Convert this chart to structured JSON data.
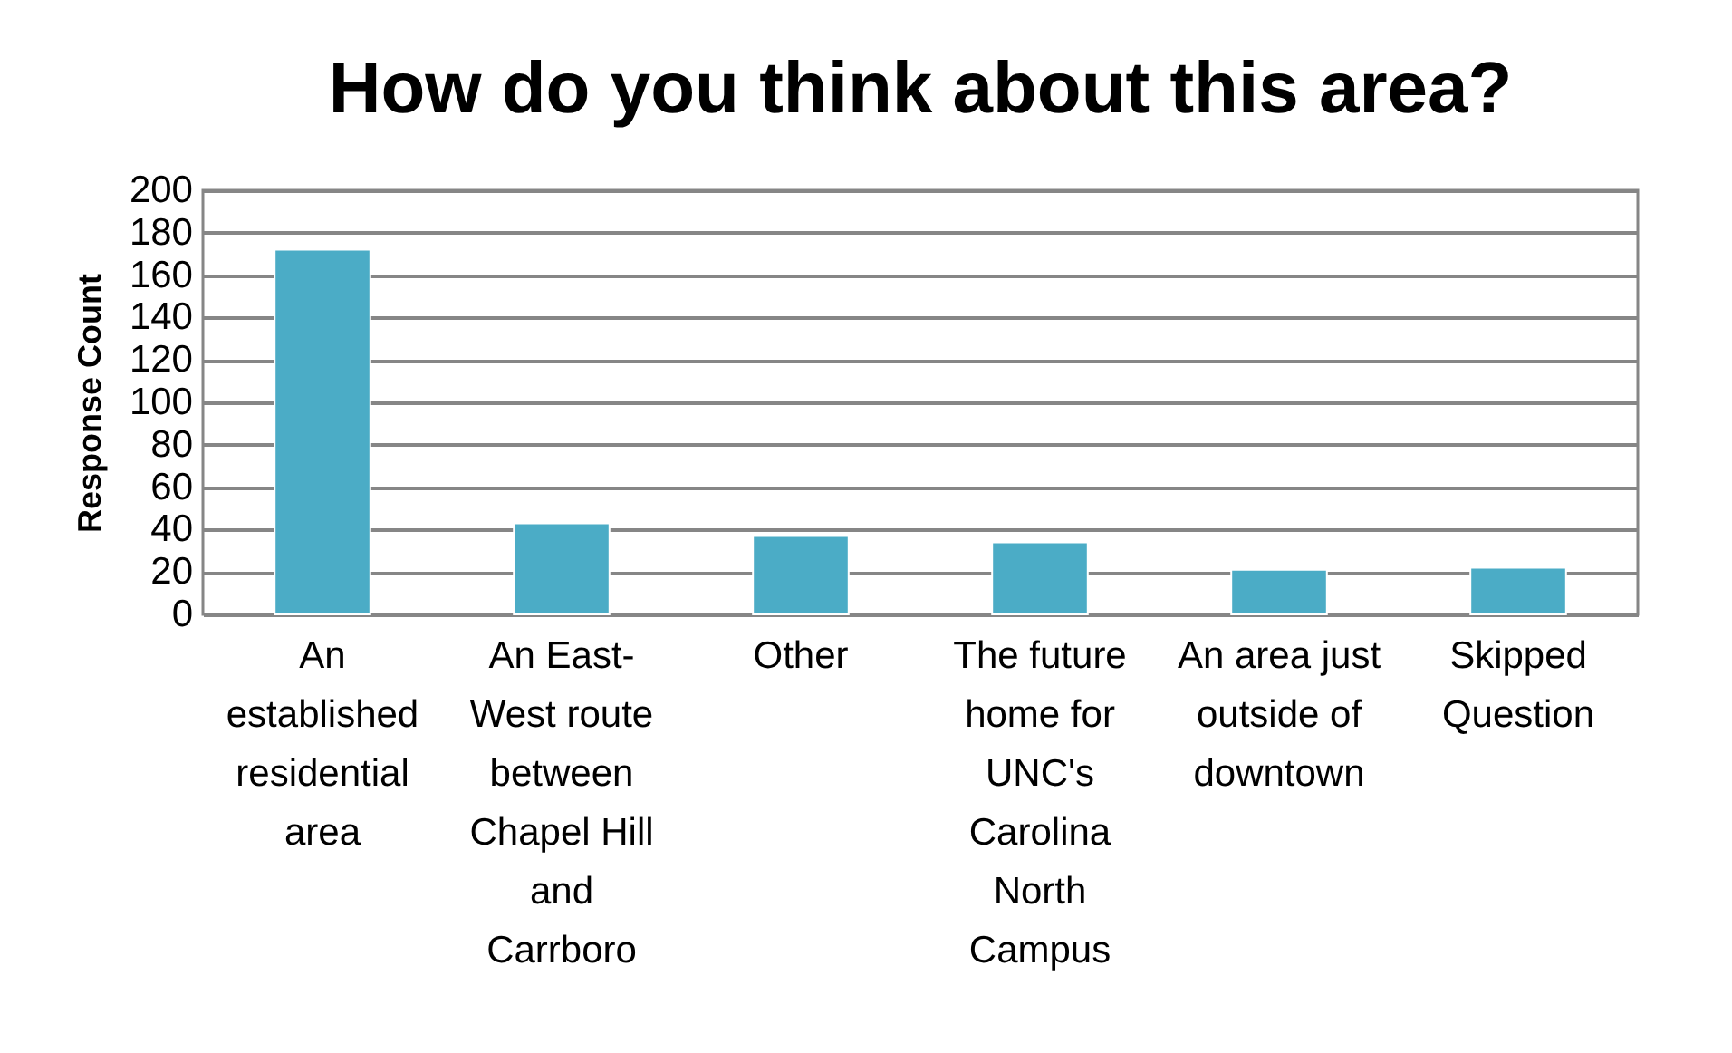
{
  "chart_data": {
    "type": "bar",
    "title": "How do you think about this area?",
    "ylabel": "Response Count",
    "categories": [
      "An\nestablished\nresidential\narea",
      "An East-\nWest route\nbetween\nChapel Hill\nand\nCarrboro",
      "Other",
      "The future\nhome for\nUNC's\nCarolina\nNorth\nCampus",
      "An area just\noutside of\ndowntown",
      "Skipped\nQuestion"
    ],
    "values": [
      172,
      43,
      37,
      34,
      21,
      22
    ],
    "color": "#4bacc6",
    "ylim": [
      0,
      200
    ],
    "yticks": [
      0,
      20,
      40,
      60,
      80,
      100,
      120,
      140,
      160,
      180,
      200
    ],
    "grid": "y"
  }
}
